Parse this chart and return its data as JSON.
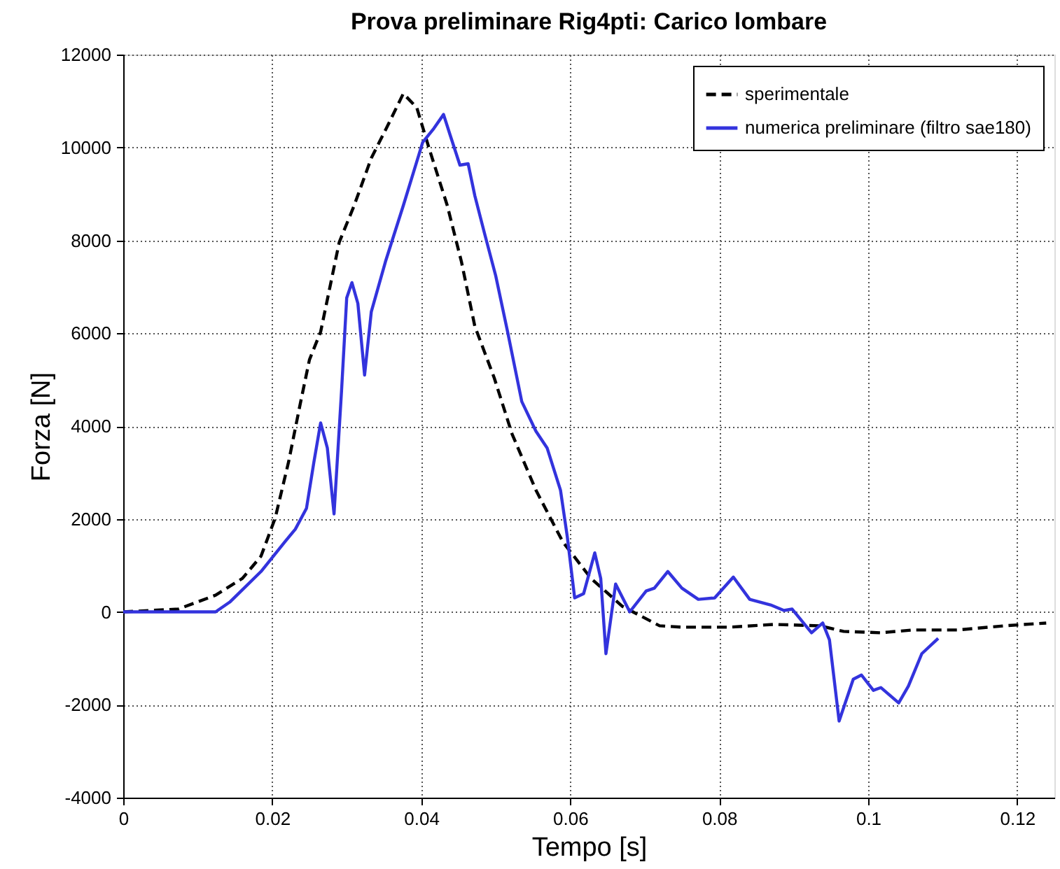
{
  "chart_data": {
    "type": "line",
    "title": "Prova preliminare Rig4pti: Carico lombare",
    "xlabel": "Tempo [s]",
    "ylabel": "Forza [N]",
    "xlim": [
      0,
      0.125
    ],
    "xticks": [
      0,
      0.02,
      0.04,
      0.06,
      0.08,
      0.1,
      0.12
    ],
    "ylim": [
      -4000,
      12000
    ],
    "yticks": [
      -4000,
      -2000,
      0,
      2000,
      4000,
      6000,
      8000,
      10000,
      12000
    ],
    "grid": true,
    "legend": "top right",
    "marker": "none",
    "series": [
      {
        "name": "sperimentale",
        "color": "#000000",
        "line_style": "dashed",
        "x": [
          0,
          0.0074,
          0.0124,
          0.016,
          0.0185,
          0.0204,
          0.0222,
          0.0237,
          0.025,
          0.0265,
          0.029,
          0.031,
          0.0333,
          0.0355,
          0.0376,
          0.0394,
          0.0411,
          0.0435,
          0.0454,
          0.0472,
          0.0498,
          0.0522,
          0.0554,
          0.059,
          0.0628,
          0.067,
          0.072,
          0.075,
          0.0813,
          0.0874,
          0.0935,
          0.0967,
          0.1017,
          0.106,
          0.112,
          0.1183,
          0.1239
        ],
        "values": [
          0,
          60,
          360,
          720,
          1200,
          2020,
          3230,
          4430,
          5430,
          6030,
          7960,
          8750,
          9770,
          10470,
          11160,
          10860,
          9960,
          8750,
          7540,
          6150,
          5040,
          3830,
          2620,
          1510,
          720,
          120,
          -300,
          -330,
          -330,
          -270,
          -300,
          -420,
          -450,
          -390,
          -390,
          -300,
          -240
        ]
      },
      {
        "name": "numerica preliminare (filtro sae180)",
        "color": "#3333dd",
        "line_style": "solid",
        "x": [
          0,
          0.0124,
          0.0143,
          0.0185,
          0.0217,
          0.0231,
          0.0246,
          0.0256,
          0.0265,
          0.0274,
          0.0283,
          0.0293,
          0.03,
          0.0307,
          0.0315,
          0.0324,
          0.0333,
          0.0352,
          0.0376,
          0.0402,
          0.0417,
          0.043,
          0.0439,
          0.0452,
          0.0463,
          0.0472,
          0.0485,
          0.05,
          0.0516,
          0.0535,
          0.0554,
          0.0569,
          0.0587,
          0.0596,
          0.0606,
          0.0618,
          0.0633,
          0.0641,
          0.0648,
          0.0661,
          0.068,
          0.0702,
          0.0713,
          0.0731,
          0.075,
          0.0772,
          0.0794,
          0.0819,
          0.0841,
          0.0869,
          0.0887,
          0.0898,
          0.0924,
          0.0939,
          0.0948,
          0.0961,
          0.098,
          0.0991,
          0.1007,
          0.1017,
          0.1041,
          0.1054,
          0.1072,
          0.1094
        ],
        "values": [
          0,
          0,
          210,
          870,
          1510,
          1780,
          2230,
          3230,
          4070,
          3530,
          2110,
          4740,
          6760,
          7090,
          6640,
          5100,
          6460,
          7540,
          8750,
          10110,
          10410,
          10710,
          10260,
          9620,
          9650,
          8960,
          8150,
          7240,
          6030,
          4530,
          3890,
          3530,
          2620,
          1630,
          300,
          390,
          1270,
          720,
          -900,
          600,
          0,
          450,
          510,
          870,
          510,
          270,
          300,
          750,
          270,
          150,
          30,
          60,
          -450,
          -240,
          -600,
          -2350,
          -1450,
          -1360,
          -1690,
          -1630,
          -1960,
          -1600,
          -900,
          -570
        ]
      }
    ]
  }
}
